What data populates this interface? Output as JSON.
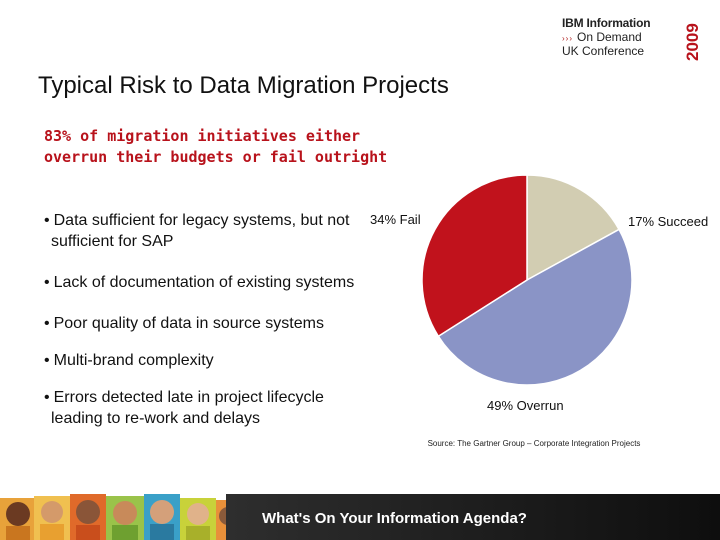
{
  "logo": {
    "line1": "IBM Information",
    "line2": "On Demand",
    "line3": "UK Conference",
    "year": "2009",
    "accent_color": "#b8121b"
  },
  "slide": {
    "title": "Typical Risk to Data Migration Projects",
    "highlight": "83% of migration initiatives either overrun their budgets or fail outright",
    "bullets": [
      "Data sufficient for legacy systems, but not sufficient for SAP",
      "Lack of documentation of existing systems",
      "Poor quality of data in source systems",
      "Multi-brand complexity",
      "Errors detected late in project lifecycle leading to re-work and delays"
    ],
    "source": "Source: The Gartner Group – Corporate Integration Projects"
  },
  "footer": {
    "text": "What's On Your Information Agenda?",
    "band_color": "#1a1a1a"
  },
  "chart_data": {
    "type": "pie",
    "title": "",
    "slices": [
      {
        "label": "17% Succeed",
        "value": 17,
        "color": "#d2cdb2"
      },
      {
        "label": "49% Overrun",
        "value": 49,
        "color": "#8a94c6"
      },
      {
        "label": "34% Fail",
        "value": 34,
        "color": "#c1121c"
      }
    ],
    "legend": "none",
    "labels_outside": true
  }
}
